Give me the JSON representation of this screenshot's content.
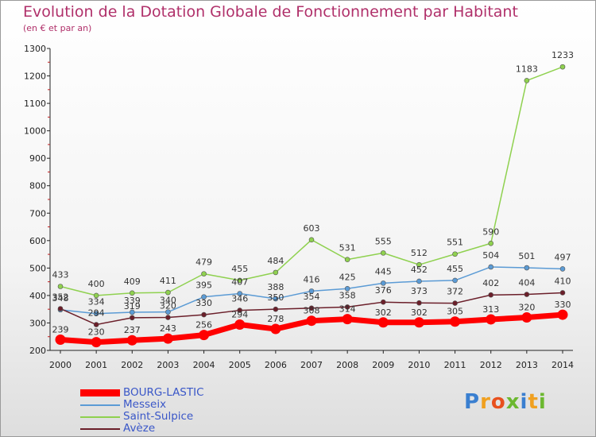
{
  "header": {
    "title": "Evolution de la Dotation Globale de Fonctionnement par Habitant",
    "subtitle": "(en € et par an)"
  },
  "logo": {
    "text": "Proxiti"
  },
  "chart_data": {
    "type": "line",
    "x": [
      2000,
      2001,
      2002,
      2003,
      2004,
      2005,
      2006,
      2007,
      2008,
      2009,
      2010,
      2011,
      2012,
      2013,
      2014
    ],
    "ylim": [
      200,
      1300
    ],
    "yticks": [
      200,
      300,
      400,
      500,
      600,
      700,
      800,
      900,
      1000,
      1100,
      1200,
      1300
    ],
    "grid": false,
    "legend_position": "bottom-left",
    "series": [
      {
        "name": "BOURG-LASTIC",
        "color": "#ff0000",
        "values": [
          239,
          230,
          237,
          243,
          256,
          294,
          278,
          308,
          314,
          302,
          302,
          305,
          313,
          320,
          330
        ]
      },
      {
        "name": "Messeix",
        "color": "#5b9bd5",
        "values": [
          348,
          334,
          339,
          340,
          395,
          407,
          388,
          416,
          425,
          445,
          452,
          455,
          504,
          501,
          497
        ]
      },
      {
        "name": "Saint-Sulpice",
        "color": "#8fd14f",
        "values": [
          433,
          400,
          409,
          411,
          479,
          455,
          484,
          603,
          531,
          555,
          512,
          551,
          590,
          1183,
          1233
        ]
      },
      {
        "name": "Avèze",
        "color": "#6b1f2a",
        "values": [
          352,
          294,
          319,
          320,
          330,
          346,
          350,
          354,
          358,
          376,
          373,
          372,
          402,
          404,
          410
        ]
      }
    ]
  }
}
